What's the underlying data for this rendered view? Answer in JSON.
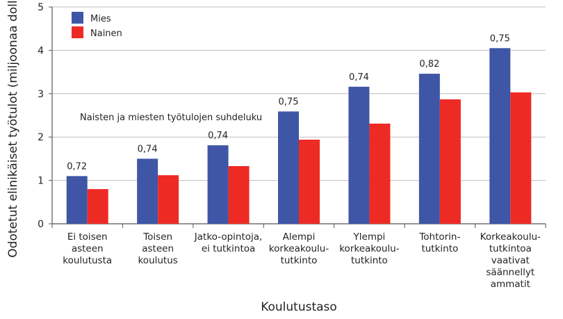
{
  "chart_data": {
    "type": "bar",
    "title": "",
    "xlabel": "Koulutustaso",
    "ylabel": "Odotetut elinikäiset työtulot (miljoonaa dollaria)",
    "ylim": [
      0,
      5
    ],
    "yticks": [
      "0",
      "1",
      "2",
      "3",
      "4",
      "5"
    ],
    "grid": true,
    "legend_position": "top-left",
    "categories": [
      [
        "Ei toisen",
        "asteen",
        "koulutusta"
      ],
      [
        "Toisen",
        "asteen",
        "koulutus"
      ],
      [
        "Jatko-opintoja,",
        "ei tutkintoa"
      ],
      [
        "Alempi",
        "korkeakoulu-",
        "tutkinto"
      ],
      [
        "Ylempi",
        "korkeakoulu-",
        "tutkinto"
      ],
      [
        "Tohtorin-",
        "tutkinto"
      ],
      [
        "Korkeakoulu-",
        "tutkintoa",
        "vaativat",
        "säännellyt",
        "ammatit"
      ]
    ],
    "series": [
      {
        "name": "Mies",
        "color": "#3f56a6",
        "values": [
          1.1,
          1.5,
          1.81,
          2.59,
          3.16,
          3.46,
          4.05
        ]
      },
      {
        "name": "Nainen",
        "color": "#ee2a24",
        "values": [
          0.8,
          1.12,
          1.33,
          1.94,
          2.31,
          2.87,
          3.03
        ]
      }
    ],
    "annotation": "Naisten ja miesten työtulojen suhdeluku",
    "ratio_labels": [
      "0,72",
      "0,74",
      "0,74",
      "0,75",
      "0,74",
      "0,82",
      "0,75"
    ]
  }
}
